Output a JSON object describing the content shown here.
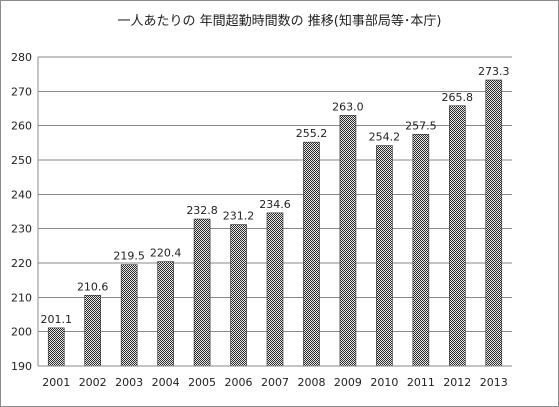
{
  "chart_data": {
    "type": "bar",
    "title": "一人あたりの 年間超勤時間数の 推移(知事部局等･本庁)",
    "xlabel": "",
    "ylabel": "",
    "categories": [
      "2001",
      "2002",
      "2003",
      "2004",
      "2005",
      "2006",
      "2007",
      "2008",
      "2009",
      "2010",
      "2011",
      "2012",
      "2013"
    ],
    "values": [
      201.1,
      210.6,
      219.5,
      220.4,
      232.8,
      231.2,
      234.6,
      255.2,
      263.0,
      254.2,
      257.5,
      265.8,
      273.3
    ],
    "value_labels": [
      "201.1",
      "210.6",
      "219.5",
      "220.4",
      "232.8",
      "231.2",
      "234.6",
      "255.2",
      "263.0",
      "254.2",
      "257.5",
      "265.8",
      "273.3"
    ],
    "ylim": [
      190,
      280
    ],
    "yticks": [
      190,
      200,
      210,
      220,
      230,
      240,
      250,
      260,
      270,
      280
    ],
    "grid": true,
    "legend": "none",
    "bar_fill": "hatched dark gray",
    "colors": {
      "bar_dark": "#2a2a2a",
      "bar_light": "#e8e8e8",
      "grid": "#8a8a8a",
      "axis": "#888888"
    }
  }
}
